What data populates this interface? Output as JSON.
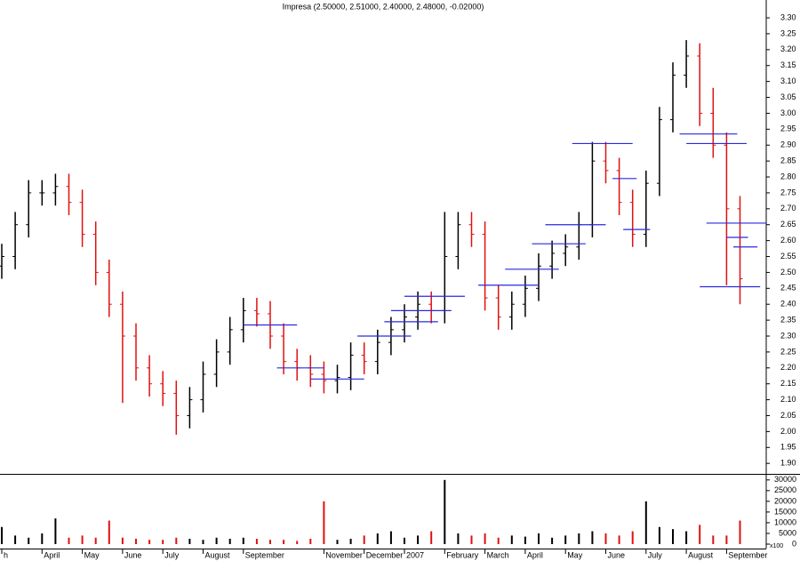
{
  "chart_data": {
    "type": "ohlc",
    "title": "Impresa (2.50000, 2.51000, 2.40000, 2.48000, -0.02000)",
    "categories": [
      "h",
      null,
      null,
      "April",
      null,
      null,
      "May",
      null,
      null,
      "June",
      null,
      null,
      "July",
      null,
      null,
      "August",
      null,
      null,
      "September",
      null,
      null,
      null,
      null,
      null,
      "November",
      null,
      null,
      "December",
      null,
      null,
      "2007",
      null,
      null,
      "February",
      null,
      null,
      "March",
      null,
      null,
      "April",
      null,
      null,
      "May",
      null,
      null,
      "June",
      null,
      null,
      "July",
      null,
      null,
      "August",
      null,
      null,
      "September",
      null
    ],
    "open": [
      2.52,
      2.55,
      2.65,
      2.75,
      2.75,
      2.77,
      2.72,
      2.62,
      2.5,
      2.4,
      2.3,
      2.2,
      2.15,
      2.12,
      2.05,
      2.1,
      2.18,
      2.25,
      2.32,
      2.38,
      2.37,
      2.3,
      2.22,
      2.2,
      2.18,
      2.16,
      2.17,
      2.24,
      2.22,
      2.28,
      2.32,
      2.36,
      2.4,
      2.38,
      2.55,
      2.65,
      2.62,
      2.42,
      2.36,
      2.4,
      2.45,
      2.52,
      2.56,
      2.58,
      2.65,
      2.85,
      2.82,
      2.72,
      2.62,
      2.78,
      2.98,
      3.12,
      3.18,
      3.0,
      2.9,
      2.7
    ],
    "high": [
      2.59,
      2.69,
      2.79,
      2.79,
      2.81,
      2.81,
      2.76,
      2.66,
      2.54,
      2.44,
      2.34,
      2.24,
      2.19,
      2.16,
      2.14,
      2.22,
      2.29,
      2.36,
      2.42,
      2.42,
      2.41,
      2.34,
      2.26,
      2.24,
      2.22,
      2.21,
      2.28,
      2.28,
      2.32,
      2.36,
      2.4,
      2.44,
      2.44,
      2.69,
      2.69,
      2.69,
      2.66,
      2.46,
      2.44,
      2.49,
      2.56,
      2.6,
      2.62,
      2.69,
      2.91,
      2.91,
      2.86,
      2.76,
      2.82,
      3.02,
      3.16,
      3.23,
      3.22,
      3.08,
      2.94,
      2.74
    ],
    "low": [
      2.48,
      2.51,
      2.61,
      2.71,
      2.71,
      2.68,
      2.58,
      2.46,
      2.36,
      2.09,
      2.16,
      2.11,
      2.08,
      1.99,
      2.01,
      2.06,
      2.14,
      2.21,
      2.28,
      2.33,
      2.26,
      2.18,
      2.16,
      2.14,
      2.12,
      2.12,
      2.13,
      2.18,
      2.18,
      2.24,
      2.28,
      2.32,
      2.34,
      2.34,
      2.51,
      2.58,
      2.38,
      2.32,
      2.32,
      2.36,
      2.41,
      2.48,
      2.52,
      2.54,
      2.61,
      2.78,
      2.68,
      2.58,
      2.58,
      2.74,
      2.94,
      3.08,
      2.96,
      2.86,
      2.46,
      2.4
    ],
    "close": [
      2.55,
      2.65,
      2.75,
      2.75,
      2.77,
      2.72,
      2.62,
      2.5,
      2.4,
      2.3,
      2.2,
      2.15,
      2.12,
      2.05,
      2.1,
      2.18,
      2.25,
      2.32,
      2.38,
      2.37,
      2.3,
      2.22,
      2.2,
      2.18,
      2.16,
      2.17,
      2.24,
      2.22,
      2.28,
      2.32,
      2.36,
      2.4,
      2.38,
      2.55,
      2.65,
      2.62,
      2.42,
      2.36,
      2.4,
      2.45,
      2.52,
      2.56,
      2.58,
      2.65,
      2.85,
      2.82,
      2.72,
      2.62,
      2.78,
      2.98,
      3.12,
      3.18,
      3.0,
      2.9,
      2.7,
      2.48
    ],
    "up_color": "#000000",
    "down_color": "#e01010",
    "ylim": [
      1.867,
      3.356
    ],
    "yticks": [
      {
        "value": 1.9,
        "label": "1.90"
      },
      1.95,
      {
        "value": 2,
        "label": "2.00"
      },
      2.05,
      {
        "value": 2.1,
        "label": "2.10"
      },
      2.15,
      {
        "value": 2.2,
        "label": "2.20"
      },
      2.25,
      {
        "value": 2.3,
        "label": "2.30"
      },
      2.35,
      {
        "value": 2.4,
        "label": "2.40"
      },
      2.45,
      {
        "value": 2.5,
        "label": "2.50"
      },
      2.55,
      {
        "value": 2.6,
        "label": "2.60"
      },
      2.65,
      {
        "value": 2.7,
        "label": "2.70"
      },
      2.75,
      {
        "value": 2.8,
        "label": "2.80"
      },
      2.85,
      {
        "value": 2.9,
        "label": "2.90"
      },
      2.95,
      {
        "value": 3,
        "label": "3.00"
      },
      3.05,
      {
        "value": 3.1,
        "label": "3.10"
      },
      3.15,
      {
        "value": 3.2,
        "label": "3.20"
      },
      3.25,
      {
        "value": 3.3,
        "label": "3.30"
      }
    ],
    "levels_color": "#2a2ae0",
    "levels": [
      {
        "value": 2.335,
        "from": 18,
        "to": 22
      },
      {
        "value": 2.2,
        "from": 20.5,
        "to": 24
      },
      {
        "value": 2.165,
        "from": 23,
        "to": 27
      },
      {
        "value": 2.3,
        "from": 26.5,
        "to": 30.5
      },
      {
        "value": 2.345,
        "from": 28.5,
        "to": 32.5
      },
      {
        "value": 2.38,
        "from": 29,
        "to": 33.5
      },
      {
        "value": 2.425,
        "from": 30,
        "to": 34.5
      },
      {
        "value": 2.46,
        "from": 35.5,
        "to": 40
      },
      {
        "value": 2.51,
        "from": 37.5,
        "to": 41.5
      },
      {
        "value": 2.59,
        "from": 39.5,
        "to": 43.5
      },
      {
        "value": 2.65,
        "from": 40.5,
        "to": 45
      },
      {
        "value": 2.905,
        "from": 42.5,
        "to": 47
      },
      {
        "value": 2.795,
        "from": 45.5,
        "to": 47.3
      },
      {
        "value": 2.635,
        "from": 46.3,
        "to": 48.3
      },
      {
        "value": 2.935,
        "from": 50.5,
        "to": 54.8
      },
      {
        "value": 2.905,
        "from": 51,
        "to": 55.5
      },
      {
        "value": 2.655,
        "from": 52.5,
        "to": 57
      },
      {
        "value": 2.61,
        "from": 54,
        "to": 55.6
      },
      {
        "value": 2.58,
        "from": 54.5,
        "to": 56.3
      },
      {
        "value": 2.455,
        "from": 52,
        "to": 56.5
      }
    ],
    "volume": [
      8000,
      4000,
      3000,
      5000,
      12000,
      3000,
      4000,
      3000,
      11000,
      3000,
      2500,
      2000,
      2000,
      3000,
      2500,
      2000,
      3000,
      2500,
      3000,
      2500,
      2000,
      2000,
      1500,
      2500,
      20000,
      2000,
      2500,
      4000,
      5000,
      6000,
      3000,
      4000,
      6000,
      30000,
      5000,
      4000,
      5000,
      3000,
      4000,
      3500,
      5000,
      3000,
      4000,
      5000,
      6000,
      5000,
      4000,
      6000,
      20000,
      8000,
      7000,
      6000,
      9000,
      4000,
      4000,
      11000
    ],
    "volume_ylim": [
      0,
      32000
    ],
    "volume_yticks": [
      0,
      5000,
      10000,
      15000,
      20000,
      25000,
      30000
    ],
    "volume_unit_label": "x100"
  }
}
